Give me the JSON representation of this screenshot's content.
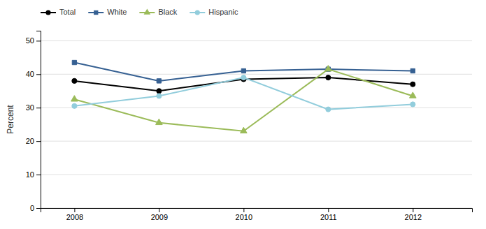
{
  "chart_data": {
    "type": "line",
    "ylabel": "Percent",
    "x": [
      2008,
      2009,
      2010,
      2011,
      2012
    ],
    "series": [
      {
        "name": "Total",
        "color": "#000000",
        "marker": "circle",
        "values": [
          38,
          35,
          38.5,
          39,
          37
        ]
      },
      {
        "name": "White",
        "color": "#366092",
        "marker": "square",
        "values": [
          43.5,
          38,
          41,
          41.5,
          41
        ]
      },
      {
        "name": "Black",
        "color": "#9BBB59",
        "marker": "triangle-up",
        "values": [
          32.5,
          25.5,
          23,
          41.5,
          33.5
        ]
      },
      {
        "name": "Hispanic",
        "color": "#92CDDC",
        "marker": "circle",
        "values": [
          30.5,
          33.5,
          39,
          29.5,
          31
        ]
      }
    ],
    "xlim": [
      2007.6,
      2012.7
    ],
    "xticks": [
      2008,
      2009,
      2010,
      2011,
      2012
    ],
    "ylim": [
      0,
      53
    ],
    "yticks": [
      0,
      10,
      20,
      30,
      40,
      50
    ],
    "grid": true,
    "legend": "top-left"
  }
}
